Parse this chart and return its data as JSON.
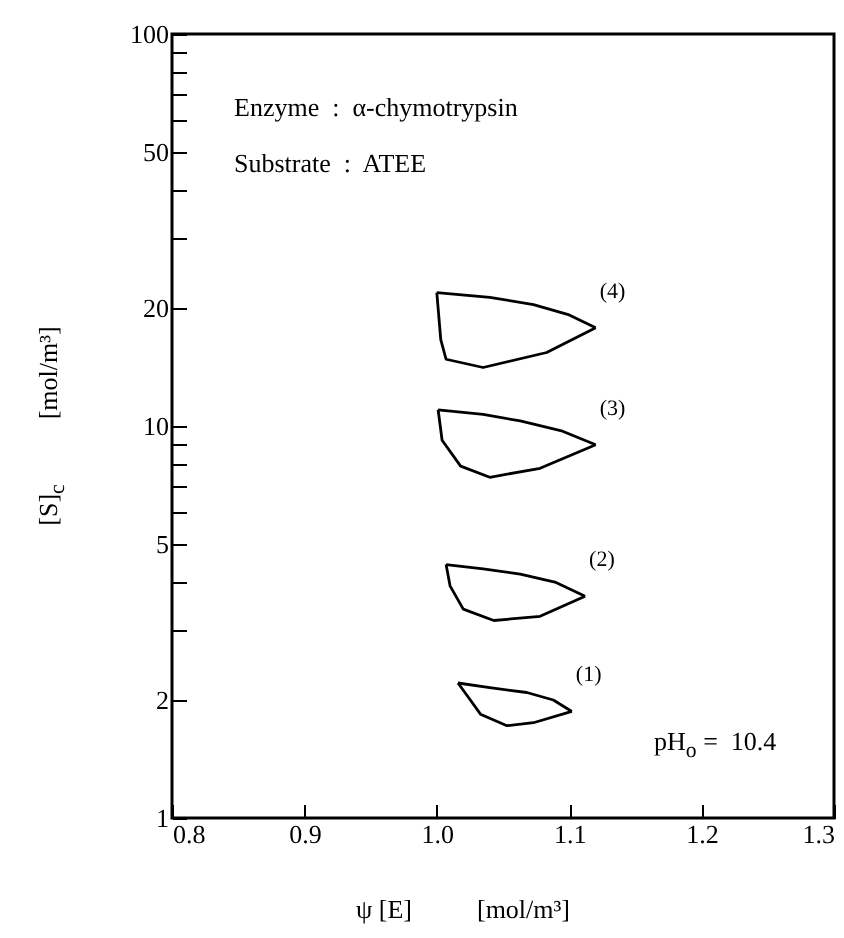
{
  "chart_data": {
    "type": "line",
    "xlabel": "ψ [E]          [mol/m³]",
    "ylabel": "[S]$_{c}$          [mol/m³]",
    "annotations": [
      "Enzyme  :  α-chymotrypsin",
      "Substrate  :  ATEE",
      "pH$_{o}$ =  10.4"
    ],
    "log": "y",
    "xlim": [
      0.8,
      1.3
    ],
    "xticks": [
      {
        "value": 0.8,
        "label": "0.8"
      },
      {
        "value": 0.9,
        "label": "0.9"
      },
      {
        "value": 1.0,
        "label": "1.0"
      },
      {
        "value": 1.1,
        "label": "1.1"
      },
      {
        "value": 1.2,
        "label": "1.2"
      },
      {
        "value": 1.3,
        "label": "1.3"
      }
    ],
    "ylim": [
      1,
      100
    ],
    "yticks": [
      1,
      2,
      {
        "value": 3,
        "label": null
      },
      {
        "value": 4,
        "label": null
      },
      5,
      {
        "value": 6,
        "label": null
      },
      {
        "value": 7,
        "label": null
      },
      {
        "value": 8,
        "label": null
      },
      {
        "value": 9,
        "label": null
      },
      10,
      20,
      {
        "value": 30,
        "label": null
      },
      {
        "value": 40,
        "label": null
      },
      50,
      {
        "value": 60,
        "label": null
      },
      {
        "value": 70,
        "label": null
      },
      {
        "value": 80,
        "label": null
      },
      {
        "value": 90,
        "label": null
      },
      100
    ],
    "series": [
      {
        "name": "(4)",
        "color": "#000000",
        "x": [
          1.0,
          1.04,
          1.073,
          1.1,
          1.12
        ],
        "values": [
          21.9,
          21.3,
          20.4,
          19.2,
          17.8
        ]
      },
      {
        "color": "#000000",
        "x": [
          1.0,
          1.003,
          1.007,
          1.035,
          1.083,
          1.12
        ],
        "values": [
          21.9,
          16.6,
          14.8,
          14.1,
          15.4,
          17.8
        ]
      },
      {
        "name": "(3)",
        "color": "#000000",
        "x": [
          1.001,
          1.035,
          1.063,
          1.095,
          1.12
        ],
        "values": [
          11.0,
          10.7,
          10.3,
          9.7,
          8.96
        ]
      },
      {
        "color": "#000000",
        "x": [
          1.001,
          1.004,
          1.018,
          1.04,
          1.078,
          1.12
        ],
        "values": [
          11.0,
          9.2,
          7.9,
          7.4,
          7.8,
          8.96
        ]
      },
      {
        "name": "(2)",
        "color": "#000000",
        "x": [
          1.007,
          1.035,
          1.063,
          1.09,
          1.112
        ],
        "values": [
          4.43,
          4.32,
          4.19,
          3.99,
          3.68
        ]
      },
      {
        "color": "#000000",
        "x": [
          1.007,
          1.01,
          1.02,
          1.043,
          1.078,
          1.112
        ],
        "values": [
          4.43,
          3.91,
          3.41,
          3.19,
          3.27,
          3.68
        ]
      },
      {
        "name": "(1)",
        "color": "#000000",
        "x": [
          1.016,
          1.04,
          1.068,
          1.088,
          1.102
        ],
        "values": [
          2.21,
          2.15,
          2.09,
          2.0,
          1.87
        ]
      },
      {
        "color": "#000000",
        "x": [
          1.016,
          1.023,
          1.033,
          1.053,
          1.073,
          1.102
        ],
        "values": [
          2.21,
          2.05,
          1.84,
          1.72,
          1.75,
          1.87
        ]
      }
    ]
  }
}
